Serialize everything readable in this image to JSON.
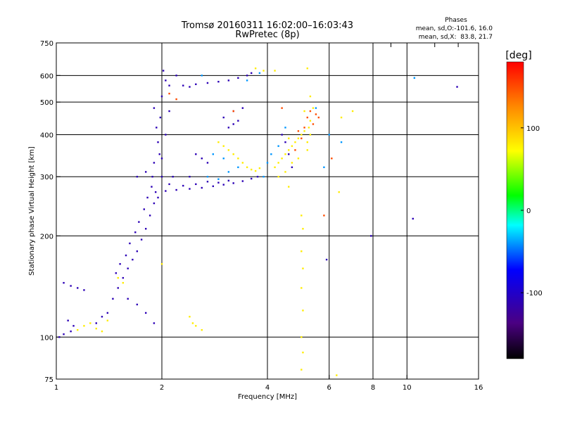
{
  "chart_data": {
    "type": "scatter",
    "title": "Tromsø 20160311 16:02:00–16:03:43",
    "subtitle": "RwPretec (8p)",
    "stats": {
      "heading": "Phases",
      "line1": "mean, sd,O:-101.6, 16.0",
      "line2": "mean, sd,X:  83.8, 21.7"
    },
    "xlabel": "Frequency [MHz]",
    "ylabel": "Stationary phase Virtual Height [km]",
    "x_scale": "log",
    "y_scale": "log",
    "xlim": [
      1,
      16
    ],
    "ylim": [
      75,
      750
    ],
    "x_ticks": [
      1,
      2,
      4,
      6,
      8,
      10,
      16
    ],
    "x_tick_labels": [
      "1",
      "2",
      "4",
      "6",
      "8",
      "10",
      "16"
    ],
    "y_ticks": [
      75,
      100,
      200,
      300,
      400,
      500,
      600,
      750
    ],
    "y_tick_labels": [
      "75",
      "100",
      "200",
      "300",
      "400",
      "500",
      "600",
      "750"
    ],
    "x_gridlines": [
      2,
      4,
      6,
      8,
      10
    ],
    "y_gridlines": [
      100,
      200,
      300,
      400,
      500,
      600
    ],
    "grid": true,
    "colorbar": {
      "label": "[deg]",
      "range": [
        -180,
        180
      ],
      "ticks": [
        100,
        0,
        -100
      ],
      "tick_labels": [
        "100",
        "0",
        "-100"
      ]
    },
    "series": [
      {
        "description": "O-mode F2 trace",
        "phase_deg": -110,
        "points": [
          [
            2.05,
            272
          ],
          [
            2.2,
            274
          ],
          [
            2.4,
            276
          ],
          [
            2.6,
            278
          ],
          [
            2.8,
            281
          ],
          [
            3.0,
            284
          ],
          [
            3.2,
            287
          ],
          [
            3.4,
            291
          ],
          [
            3.6,
            296
          ],
          [
            3.75,
            300
          ],
          [
            2.1,
            285
          ],
          [
            2.3,
            282
          ],
          [
            2.5,
            285
          ],
          [
            2.7,
            290
          ],
          [
            2.9,
            288
          ],
          [
            3.1,
            292
          ],
          [
            2.15,
            300
          ],
          [
            2.4,
            300
          ],
          [
            2.0,
            340
          ],
          [
            2.05,
            400
          ],
          [
            2.1,
            470
          ],
          [
            2.0,
            520
          ],
          [
            2.05,
            580
          ],
          [
            2.02,
            620
          ],
          [
            2.1,
            560
          ],
          [
            1.98,
            450
          ],
          [
            1.95,
            380
          ],
          [
            2.0,
            300
          ],
          [
            1.9,
            250
          ],
          [
            1.85,
            230
          ],
          [
            1.8,
            210
          ],
          [
            1.75,
            195
          ],
          [
            1.7,
            180
          ],
          [
            1.65,
            170
          ],
          [
            1.6,
            160
          ],
          [
            1.55,
            150
          ],
          [
            1.5,
            140
          ],
          [
            1.45,
            130
          ],
          [
            1.9,
            330
          ],
          [
            1.88,
            300
          ],
          [
            1.82,
            260
          ],
          [
            1.78,
            240
          ],
          [
            1.72,
            220
          ],
          [
            1.68,
            205
          ],
          [
            1.62,
            190
          ],
          [
            1.58,
            175
          ],
          [
            1.52,
            165
          ],
          [
            1.48,
            155
          ],
          [
            1.95,
            260
          ],
          [
            1.92,
            270
          ],
          [
            1.87,
            280
          ],
          [
            1.97,
            350
          ],
          [
            1.93,
            420
          ],
          [
            1.9,
            480
          ],
          [
            2.3,
            560
          ],
          [
            2.5,
            565
          ],
          [
            2.7,
            570
          ],
          [
            2.9,
            575
          ],
          [
            3.1,
            580
          ],
          [
            3.3,
            590
          ],
          [
            3.5,
            600
          ],
          [
            3.6,
            610
          ],
          [
            2.2,
            600
          ],
          [
            2.4,
            555
          ],
          [
            3.2,
            430
          ],
          [
            3.1,
            420
          ],
          [
            3.3,
            440
          ],
          [
            3.4,
            480
          ],
          [
            3.0,
            450
          ],
          [
            3.2,
            470
          ],
          [
            1.05,
            145
          ],
          [
            1.1,
            142
          ],
          [
            1.15,
            140
          ],
          [
            1.2,
            138
          ],
          [
            1.08,
            112
          ],
          [
            1.12,
            108
          ],
          [
            1.3,
            110
          ],
          [
            1.35,
            115
          ],
          [
            1.4,
            118
          ],
          [
            1.02,
            100
          ],
          [
            1.05,
            102
          ],
          [
            1.1,
            104
          ],
          [
            1.6,
            130
          ],
          [
            1.7,
            125
          ],
          [
            1.8,
            118
          ],
          [
            1.9,
            110
          ],
          [
            1.7,
            300
          ],
          [
            1.8,
            310
          ],
          [
            2.6,
            340
          ],
          [
            2.5,
            350
          ],
          [
            2.7,
            330
          ],
          [
            4.6,
            350
          ],
          [
            4.5,
            380
          ],
          [
            4.7,
            320
          ],
          [
            4.4,
            400
          ],
          [
            5.9,
            170
          ],
          [
            7.9,
            200
          ],
          [
            13.9,
            555
          ],
          [
            10.4,
            225
          ]
        ]
      },
      {
        "description": "X-mode trace",
        "phase_deg": 80,
        "points": [
          [
            4.2,
            320
          ],
          [
            4.3,
            330
          ],
          [
            4.4,
            340
          ],
          [
            4.5,
            350
          ],
          [
            4.6,
            360
          ],
          [
            4.7,
            370
          ],
          [
            4.8,
            380
          ],
          [
            4.9,
            390
          ],
          [
            5.0,
            400
          ],
          [
            5.1,
            410
          ],
          [
            4.3,
            300
          ],
          [
            4.5,
            310
          ],
          [
            4.7,
            330
          ],
          [
            4.9,
            340
          ],
          [
            5.2,
            380
          ],
          [
            5.3,
            400
          ],
          [
            5.25,
            420
          ],
          [
            5.3,
            440
          ],
          [
            5.2,
            360
          ],
          [
            4.6,
            390
          ],
          [
            3.4,
            330
          ],
          [
            3.5,
            320
          ],
          [
            3.6,
            315
          ],
          [
            3.7,
            312
          ],
          [
            3.8,
            318
          ],
          [
            3.3,
            340
          ],
          [
            3.2,
            350
          ],
          [
            3.1,
            360
          ],
          [
            3.0,
            370
          ],
          [
            2.9,
            380
          ],
          [
            5.0,
            230
          ],
          [
            5.05,
            210
          ],
          [
            5.0,
            180
          ],
          [
            5.05,
            160
          ],
          [
            5.0,
            140
          ],
          [
            5.05,
            120
          ],
          [
            5.0,
            100
          ],
          [
            5.05,
            90
          ],
          [
            5.0,
            80
          ],
          [
            5.2,
            630
          ],
          [
            5.3,
            520
          ],
          [
            5.1,
            470
          ],
          [
            6.4,
            270
          ],
          [
            6.3,
            77
          ],
          [
            3.9,
            620
          ],
          [
            4.2,
            620
          ],
          [
            3.7,
            630
          ],
          [
            1.2,
            108
          ],
          [
            1.25,
            110
          ],
          [
            1.3,
            106
          ],
          [
            1.35,
            104
          ],
          [
            1.15,
            105
          ],
          [
            1.4,
            112
          ],
          [
            1.5,
            150
          ],
          [
            1.55,
            145
          ],
          [
            2.4,
            115
          ],
          [
            2.45,
            110
          ],
          [
            2.5,
            108
          ],
          [
            2.6,
            105
          ],
          [
            2.0,
            165
          ],
          [
            4.6,
            280
          ],
          [
            6.5,
            450
          ],
          [
            7.0,
            470
          ],
          [
            5.4,
            480
          ]
        ]
      },
      {
        "description": "Mixed / cyan phase echoes",
        "phase_deg": -40,
        "points": [
          [
            2.7,
            300
          ],
          [
            2.9,
            295
          ],
          [
            3.1,
            310
          ],
          [
            3.3,
            320
          ],
          [
            2.8,
            350
          ],
          [
            3.0,
            340
          ],
          [
            4.0,
            330
          ],
          [
            4.1,
            350
          ],
          [
            4.3,
            370
          ],
          [
            3.9,
            300
          ],
          [
            6.0,
            400
          ],
          [
            6.5,
            380
          ],
          [
            5.8,
            320
          ],
          [
            5.5,
            480
          ],
          [
            4.5,
            420
          ],
          [
            10.5,
            590
          ],
          [
            2.6,
            600
          ],
          [
            3.5,
            580
          ],
          [
            3.8,
            610
          ]
        ]
      },
      {
        "description": "Orange/red phase echoes",
        "phase_deg": 150,
        "points": [
          [
            5.0,
            390
          ],
          [
            5.1,
            420
          ],
          [
            5.2,
            450
          ],
          [
            5.3,
            470
          ],
          [
            4.8,
            360
          ],
          [
            4.9,
            410
          ],
          [
            5.4,
            430
          ],
          [
            5.5,
            460
          ],
          [
            5.6,
            450
          ],
          [
            4.4,
            480
          ],
          [
            5.8,
            230
          ],
          [
            6.1,
            340
          ],
          [
            3.2,
            470
          ],
          [
            2.1,
            530
          ],
          [
            2.2,
            510
          ]
        ]
      }
    ]
  }
}
